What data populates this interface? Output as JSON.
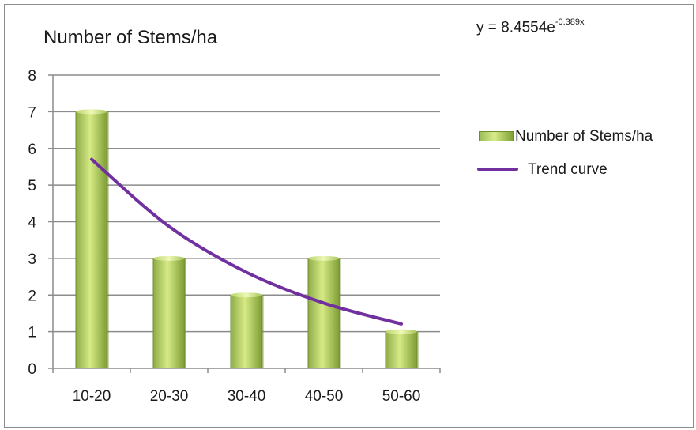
{
  "chart_data": {
    "type": "bar",
    "title": "Number of Stems/ha",
    "equation": {
      "prefix": "y = 8.4554e",
      "exponent": "-0.389x"
    },
    "categories": [
      "10-20",
      "20-30",
      "30-40",
      "40-50",
      "50-60"
    ],
    "series": [
      {
        "name": "Number of Stems/ha",
        "type": "bar",
        "values": [
          7,
          3,
          2,
          3,
          1
        ],
        "color": "#9bbb59"
      },
      {
        "name": "Trend curve",
        "type": "line",
        "values": [
          5.7,
          3.87,
          2.62,
          1.78,
          1.21
        ],
        "color": "#7030a0"
      }
    ],
    "y_ticks": [
      "0",
      "1",
      "2",
      "3",
      "4",
      "5",
      "6",
      "7",
      "8"
    ],
    "ylim": [
      0,
      8
    ],
    "xlabel": "",
    "ylabel": "",
    "grid": true,
    "legend_position": "right"
  }
}
